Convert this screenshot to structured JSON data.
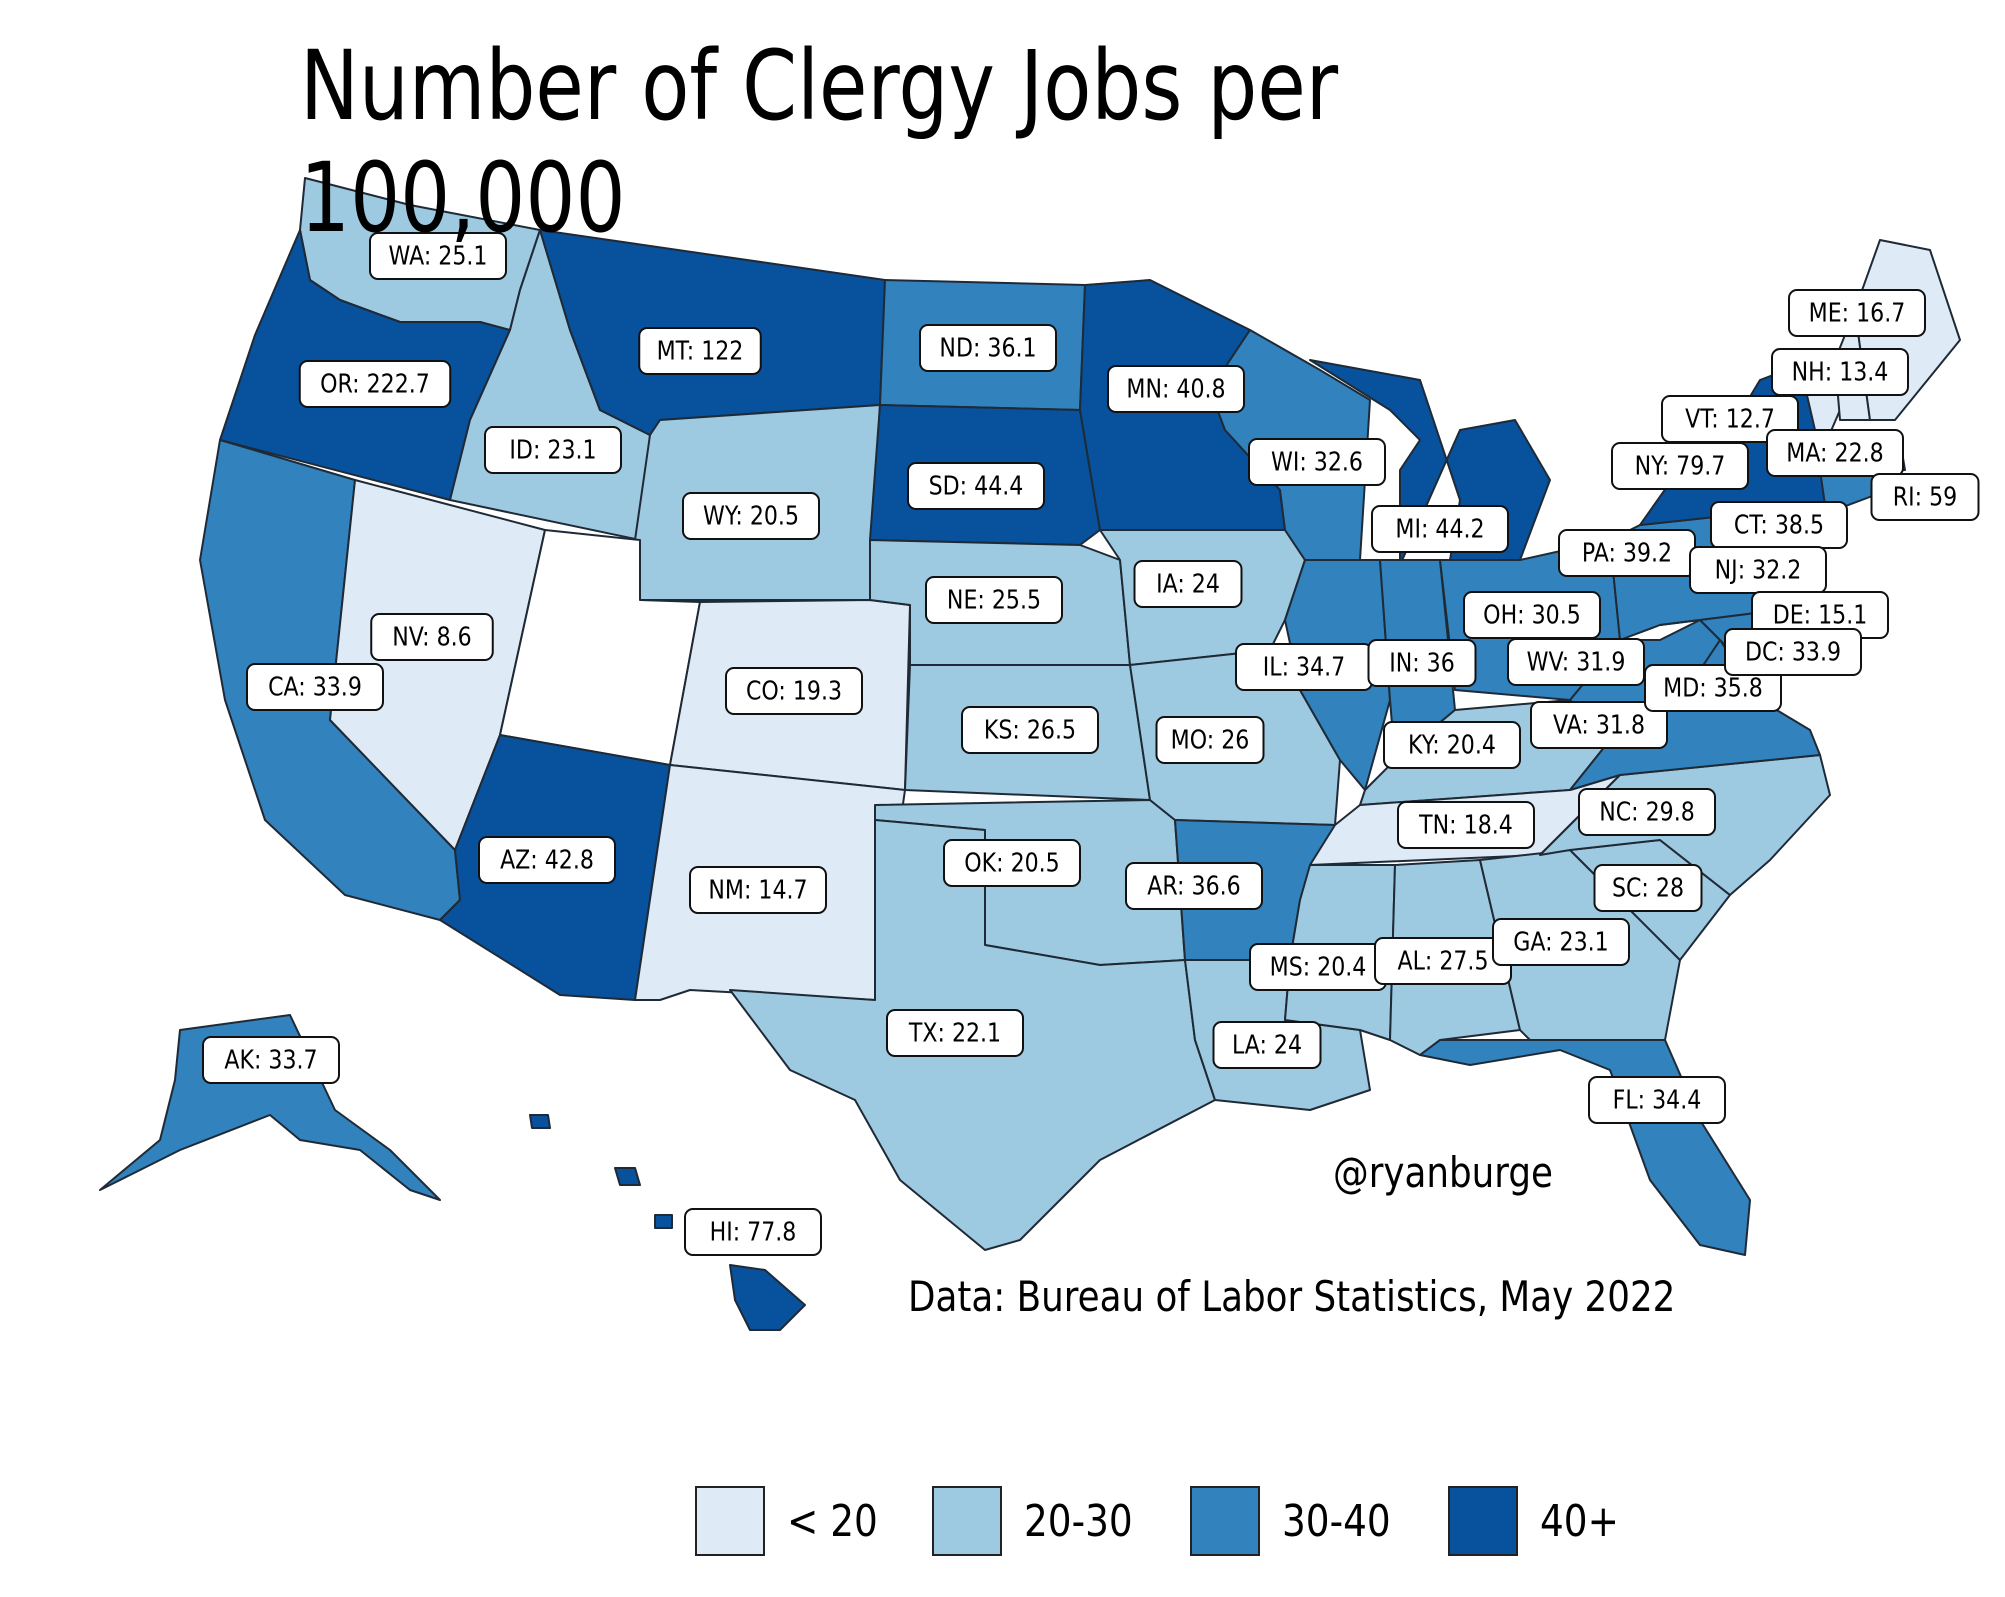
{
  "title": "Number of Clergy Jobs per 100,000",
  "credit": "@ryanburge",
  "source": "Data: Bureau of Labor Statistics, May 2022",
  "colors": {
    "bin_lt20": "#deebf7",
    "bin_20_30": "#9ecae1",
    "bin_30_40": "#3182bd",
    "bin_40p": "#08519c",
    "no_data": "#ffffff"
  },
  "legend": [
    {
      "label": "< 20",
      "color": "#deebf7"
    },
    {
      "label": "20-30",
      "color": "#9ecae1"
    },
    {
      "label": "30-40",
      "color": "#3182bd"
    },
    {
      "label": "40+",
      "color": "#08519c"
    }
  ],
  "states": [
    {
      "abbr": "WA",
      "label": "WA: 25.1",
      "value": 25.1
    },
    {
      "abbr": "OR",
      "label": "OR: 222.7",
      "value": 222.7
    },
    {
      "abbr": "CA",
      "label": "CA: 33.9",
      "value": 33.9
    },
    {
      "abbr": "NV",
      "label": "NV: 8.6",
      "value": 8.6
    },
    {
      "abbr": "ID",
      "label": "ID: 23.1",
      "value": 23.1
    },
    {
      "abbr": "MT",
      "label": "MT: 122",
      "value": 122
    },
    {
      "abbr": "WY",
      "label": "WY: 20.5",
      "value": 20.5
    },
    {
      "abbr": "UT",
      "label": "",
      "value": null
    },
    {
      "abbr": "AZ",
      "label": "AZ: 42.8",
      "value": 42.8
    },
    {
      "abbr": "CO",
      "label": "CO: 19.3",
      "value": 19.3
    },
    {
      "abbr": "NM",
      "label": "NM: 14.7",
      "value": 14.7
    },
    {
      "abbr": "ND",
      "label": "ND: 36.1",
      "value": 36.1
    },
    {
      "abbr": "SD",
      "label": "SD: 44.4",
      "value": 44.4
    },
    {
      "abbr": "NE",
      "label": "NE: 25.5",
      "value": 25.5
    },
    {
      "abbr": "KS",
      "label": "KS: 26.5",
      "value": 26.5
    },
    {
      "abbr": "OK",
      "label": "OK: 20.5",
      "value": 20.5
    },
    {
      "abbr": "TX",
      "label": "TX: 22.1",
      "value": 22.1
    },
    {
      "abbr": "MN",
      "label": "MN: 40.8",
      "value": 40.8
    },
    {
      "abbr": "IA",
      "label": "IA: 24",
      "value": 24
    },
    {
      "abbr": "MO",
      "label": "MO: 26",
      "value": 26
    },
    {
      "abbr": "AR",
      "label": "AR: 36.6",
      "value": 36.6
    },
    {
      "abbr": "LA",
      "label": "LA: 24",
      "value": 24
    },
    {
      "abbr": "WI",
      "label": "WI: 32.6",
      "value": 32.6
    },
    {
      "abbr": "IL",
      "label": "IL: 34.7",
      "value": 34.7
    },
    {
      "abbr": "MI",
      "label": "MI: 44.2",
      "value": 44.2
    },
    {
      "abbr": "IN",
      "label": "IN: 36",
      "value": 36
    },
    {
      "abbr": "OH",
      "label": "OH: 30.5",
      "value": 30.5
    },
    {
      "abbr": "KY",
      "label": "KY: 20.4",
      "value": 20.4
    },
    {
      "abbr": "TN",
      "label": "TN: 18.4",
      "value": 18.4
    },
    {
      "abbr": "MS",
      "label": "MS: 20.4",
      "value": 20.4
    },
    {
      "abbr": "AL",
      "label": "AL: 27.5",
      "value": 27.5
    },
    {
      "abbr": "GA",
      "label": "GA: 23.1",
      "value": 23.1
    },
    {
      "abbr": "FL",
      "label": "FL: 34.4",
      "value": 34.4
    },
    {
      "abbr": "SC",
      "label": "SC: 28",
      "value": 28
    },
    {
      "abbr": "NC",
      "label": "NC: 29.8",
      "value": 29.8
    },
    {
      "abbr": "VA",
      "label": "VA: 31.8",
      "value": 31.8
    },
    {
      "abbr": "WV",
      "label": "WV: 31.9",
      "value": 31.9
    },
    {
      "abbr": "PA",
      "label": "PA: 39.2",
      "value": 39.2
    },
    {
      "abbr": "NY",
      "label": "NY: 79.7",
      "value": 79.7
    },
    {
      "abbr": "VT",
      "label": "VT: 12.7",
      "value": 12.7
    },
    {
      "abbr": "NH",
      "label": "NH: 13.4",
      "value": 13.4
    },
    {
      "abbr": "ME",
      "label": "ME: 16.7",
      "value": 16.7
    },
    {
      "abbr": "MA",
      "label": "MA: 22.8",
      "value": 22.8
    },
    {
      "abbr": "RI",
      "label": "RI: 59",
      "value": 59
    },
    {
      "abbr": "CT",
      "label": "CT: 38.5",
      "value": 38.5
    },
    {
      "abbr": "NJ",
      "label": "NJ: 32.2",
      "value": 32.2
    },
    {
      "abbr": "DE",
      "label": "DE: 15.1",
      "value": 15.1
    },
    {
      "abbr": "MD",
      "label": "MD: 35.8",
      "value": 35.8
    },
    {
      "abbr": "DC",
      "label": "DC: 33.9",
      "value": 33.9
    },
    {
      "abbr": "AK",
      "label": "AK: 33.7",
      "value": 33.7
    },
    {
      "abbr": "HI",
      "label": "HI: 77.8",
      "value": 77.8
    }
  ]
}
